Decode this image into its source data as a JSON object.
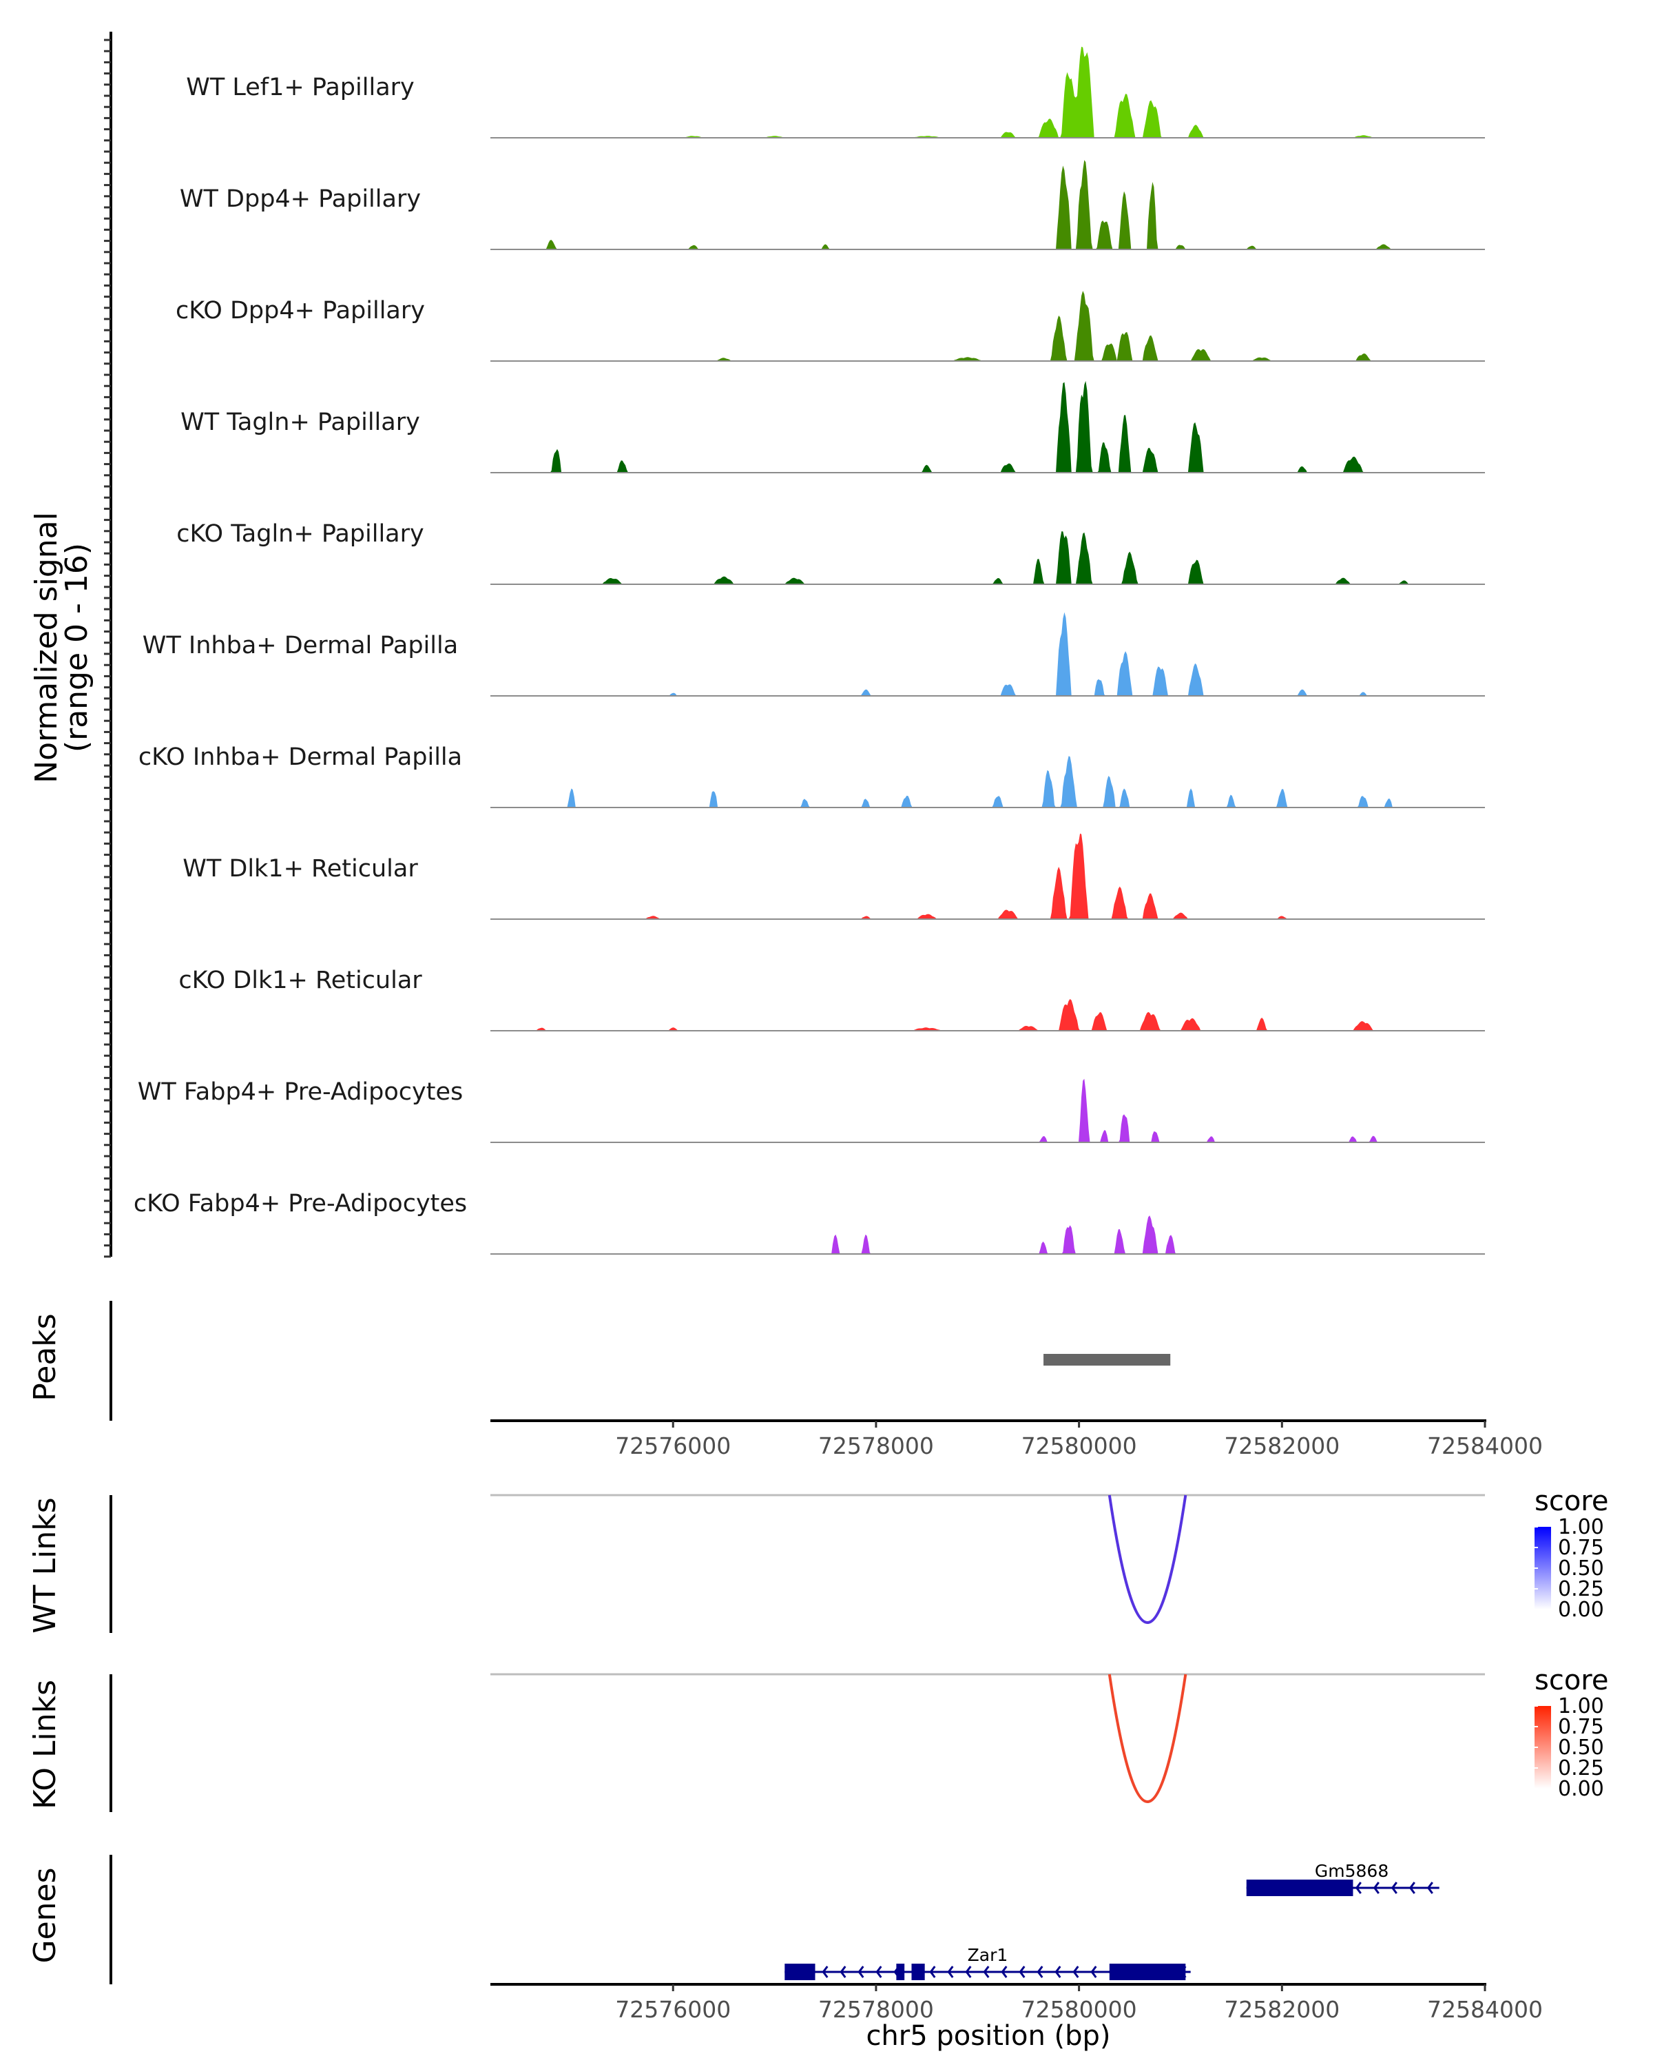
{
  "chart_data": {
    "type": "genome-coverage",
    "region": {
      "chrom": "chr5",
      "start": 72574200,
      "end": 72584000
    },
    "xlabel": "chr5 position (bp)",
    "xticks": [
      72576000,
      72578000,
      72580000,
      72582000,
      72584000
    ],
    "xtick_labels": [
      "72576000",
      "72578000",
      "72580000",
      "72582000",
      "72584000"
    ],
    "coverage": {
      "ylabel_line1": "Normalized signal",
      "ylabel_line2": "(range 0 - 16)",
      "ylim": [
        0,
        16
      ],
      "tracks": [
        {
          "name": "WT Lef1+ Papillary",
          "color": "#66CD00",
          "peaks": [
            [
              72580050,
              15,
              200
            ],
            [
              72579900,
              11,
              150
            ],
            [
              72580450,
              7,
              200
            ],
            [
              72580720,
              6,
              180
            ],
            [
              72581150,
              2,
              150
            ],
            [
              72579300,
              1,
              150
            ],
            [
              72579700,
              3,
              200
            ],
            [
              72576200,
              0.3,
              200
            ],
            [
              72577000,
              0.3,
              200
            ],
            [
              72578500,
              0.3,
              300
            ],
            [
              72582800,
              0.4,
              200
            ]
          ]
        },
        {
          "name": "WT Dpp4+ Papillary",
          "color": "#458B00",
          "peaks": [
            [
              72579850,
              13,
              150
            ],
            [
              72580050,
              14,
              150
            ],
            [
              72580450,
              9,
              120
            ],
            [
              72580720,
              11,
              100
            ],
            [
              72580250,
              5,
              150
            ],
            [
              72574800,
              1.5,
              100
            ],
            [
              72576200,
              0.7,
              100
            ],
            [
              72577500,
              0.8,
              80
            ],
            [
              72581000,
              0.8,
              100
            ],
            [
              72581700,
              0.6,
              100
            ],
            [
              72583000,
              0.8,
              150
            ]
          ]
        },
        {
          "name": "cKO Dpp4+ Papillary",
          "color": "#458B00",
          "peaks": [
            [
              72580050,
              11,
              180
            ],
            [
              72579800,
              7,
              150
            ],
            [
              72580450,
              5,
              150
            ],
            [
              72580700,
              4,
              150
            ],
            [
              72581200,
              2,
              200
            ],
            [
              72580300,
              3,
              150
            ],
            [
              72578900,
              0.6,
              300
            ],
            [
              72582800,
              1.2,
              150
            ],
            [
              72581800,
              0.6,
              200
            ],
            [
              72576500,
              0.5,
              150
            ]
          ]
        },
        {
          "name": "WT Tagln+ Papillary",
          "color": "#006400",
          "peaks": [
            [
              72579850,
              14,
              150
            ],
            [
              72580050,
              15,
              150
            ],
            [
              72580450,
              9,
              120
            ],
            [
              72581150,
              8,
              150
            ],
            [
              72580700,
              4,
              150
            ],
            [
              72580250,
              5,
              120
            ],
            [
              72574850,
              4,
              100
            ],
            [
              72575500,
              2,
              100
            ],
            [
              72578500,
              1.2,
              100
            ],
            [
              72579300,
              1.5,
              150
            ],
            [
              72582700,
              2.5,
              200
            ],
            [
              72582200,
              1,
              100
            ]
          ]
        },
        {
          "name": "cKO Tagln+ Papillary",
          "color": "#006400",
          "peaks": [
            [
              72579850,
              9,
              150
            ],
            [
              72580050,
              8,
              150
            ],
            [
              72580500,
              5,
              150
            ],
            [
              72581150,
              4,
              150
            ],
            [
              72579600,
              4,
              100
            ],
            [
              72575400,
              1,
              200
            ],
            [
              72576500,
              1.2,
              200
            ],
            [
              72577200,
              1,
              200
            ],
            [
              72579200,
              1,
              100
            ],
            [
              72582600,
              1,
              150
            ],
            [
              72583200,
              0.6,
              100
            ]
          ]
        },
        {
          "name": "WT Inhba+ Dermal Papilla",
          "color": "#56A5EC",
          "peaks": [
            [
              72579850,
              13,
              150
            ],
            [
              72580450,
              7,
              150
            ],
            [
              72580800,
              5,
              150
            ],
            [
              72581150,
              5,
              150
            ],
            [
              72579300,
              2,
              150
            ],
            [
              72576000,
              0.5,
              80
            ],
            [
              72577900,
              1,
              100
            ],
            [
              72580200,
              3,
              100
            ],
            [
              72582200,
              1,
              100
            ],
            [
              72582800,
              0.6,
              80
            ]
          ]
        },
        {
          "name": "cKO Inhba+ Dermal Papilla",
          "color": "#56A5EC",
          "peaks": [
            [
              72579700,
              6,
              120
            ],
            [
              72579900,
              8,
              150
            ],
            [
              72580300,
              5,
              120
            ],
            [
              72580450,
              3,
              100
            ],
            [
              72575000,
              3,
              80
            ],
            [
              72576400,
              3,
              80
            ],
            [
              72577300,
              1.5,
              80
            ],
            [
              72577900,
              1.5,
              80
            ],
            [
              72578300,
              2,
              100
            ],
            [
              72579200,
              2,
              100
            ],
            [
              72581100,
              3,
              80
            ],
            [
              72581500,
              2,
              80
            ],
            [
              72582000,
              3,
              100
            ],
            [
              72582800,
              2,
              100
            ],
            [
              72583050,
              1.5,
              80
            ]
          ]
        },
        {
          "name": "WT Dlk1+ Reticular",
          "color": "#FF3030",
          "peaks": [
            [
              72580000,
              14,
              180
            ],
            [
              72579800,
              8,
              150
            ],
            [
              72580400,
              5,
              150
            ],
            [
              72580700,
              4,
              150
            ],
            [
              72579300,
              1.5,
              200
            ],
            [
              72581000,
              1,
              150
            ],
            [
              72575800,
              0.5,
              150
            ],
            [
              72577900,
              0.5,
              100
            ],
            [
              72578500,
              0.8,
              200
            ],
            [
              72582000,
              0.5,
              100
            ]
          ]
        },
        {
          "name": "cKO Dlk1+ Reticular",
          "color": "#FF3030",
          "peaks": [
            [
              72579900,
              5,
              200
            ],
            [
              72580200,
              3,
              150
            ],
            [
              72580700,
              3,
              200
            ],
            [
              72581100,
              2,
              200
            ],
            [
              72574700,
              0.5,
              100
            ],
            [
              72576000,
              0.5,
              100
            ],
            [
              72578500,
              0.5,
              300
            ],
            [
              72579500,
              0.8,
              200
            ],
            [
              72581800,
              2,
              100
            ],
            [
              72582800,
              1.5,
              200
            ]
          ]
        },
        {
          "name": "WT Fabp4+ Pre-Adipocytes",
          "color": "#B23AEE",
          "peaks": [
            [
              72580050,
              10,
              100
            ],
            [
              72580450,
              5,
              100
            ],
            [
              72580250,
              2,
              80
            ],
            [
              72580750,
              2,
              80
            ],
            [
              72579650,
              1,
              80
            ],
            [
              72581300,
              1,
              80
            ],
            [
              72582700,
              1,
              80
            ],
            [
              72582900,
              1,
              80
            ]
          ]
        },
        {
          "name": "cKO Fabp4+ Pre-Adipocytes",
          "color": "#B23AEE",
          "peaks": [
            [
              72577600,
              3,
              80
            ],
            [
              72577900,
              3,
              80
            ],
            [
              72579900,
              5,
              120
            ],
            [
              72579650,
              2,
              80
            ],
            [
              72580700,
              6,
              150
            ],
            [
              72580400,
              4,
              100
            ],
            [
              72580900,
              3,
              100
            ]
          ]
        }
      ]
    },
    "peaks_track": {
      "label": "Peaks",
      "regions": [
        [
          72579650,
          72580900
        ]
      ],
      "color": "#666666"
    },
    "links": [
      {
        "label": "WT Links",
        "start": 72580300,
        "end": 72581050,
        "score": 1.0,
        "color_low": "#FFFFFF",
        "color_high": "#0000FF",
        "arc_color": "#5533E0",
        "legend_title": "score",
        "legend_ticks": [
          "1.00",
          "0.75",
          "0.50",
          "0.25",
          "0.00"
        ]
      },
      {
        "label": "KO Links",
        "start": 72580300,
        "end": 72581050,
        "score": 1.0,
        "color_low": "#FFFFFF",
        "color_high": "#FF2200",
        "arc_color": "#F0462A",
        "legend_title": "score",
        "legend_ticks": [
          "1.00",
          "0.75",
          "0.50",
          "0.25",
          "0.00"
        ]
      }
    ],
    "genes_track": {
      "label": "Genes",
      "color": "#00008B",
      "genes": [
        {
          "name": "Gm5868",
          "strand": "-",
          "start": 72581650,
          "end": 72583550,
          "exons": [
            [
              72581650,
              72582700
            ]
          ]
        },
        {
          "name": "Zar1",
          "strand": "-",
          "start": 72577100,
          "end": 72581100,
          "exons": [
            [
              72577100,
              72577400
            ],
            [
              72578200,
              72578280
            ],
            [
              72578350,
              72578480
            ],
            [
              72580300,
              72581050
            ]
          ]
        }
      ]
    }
  }
}
